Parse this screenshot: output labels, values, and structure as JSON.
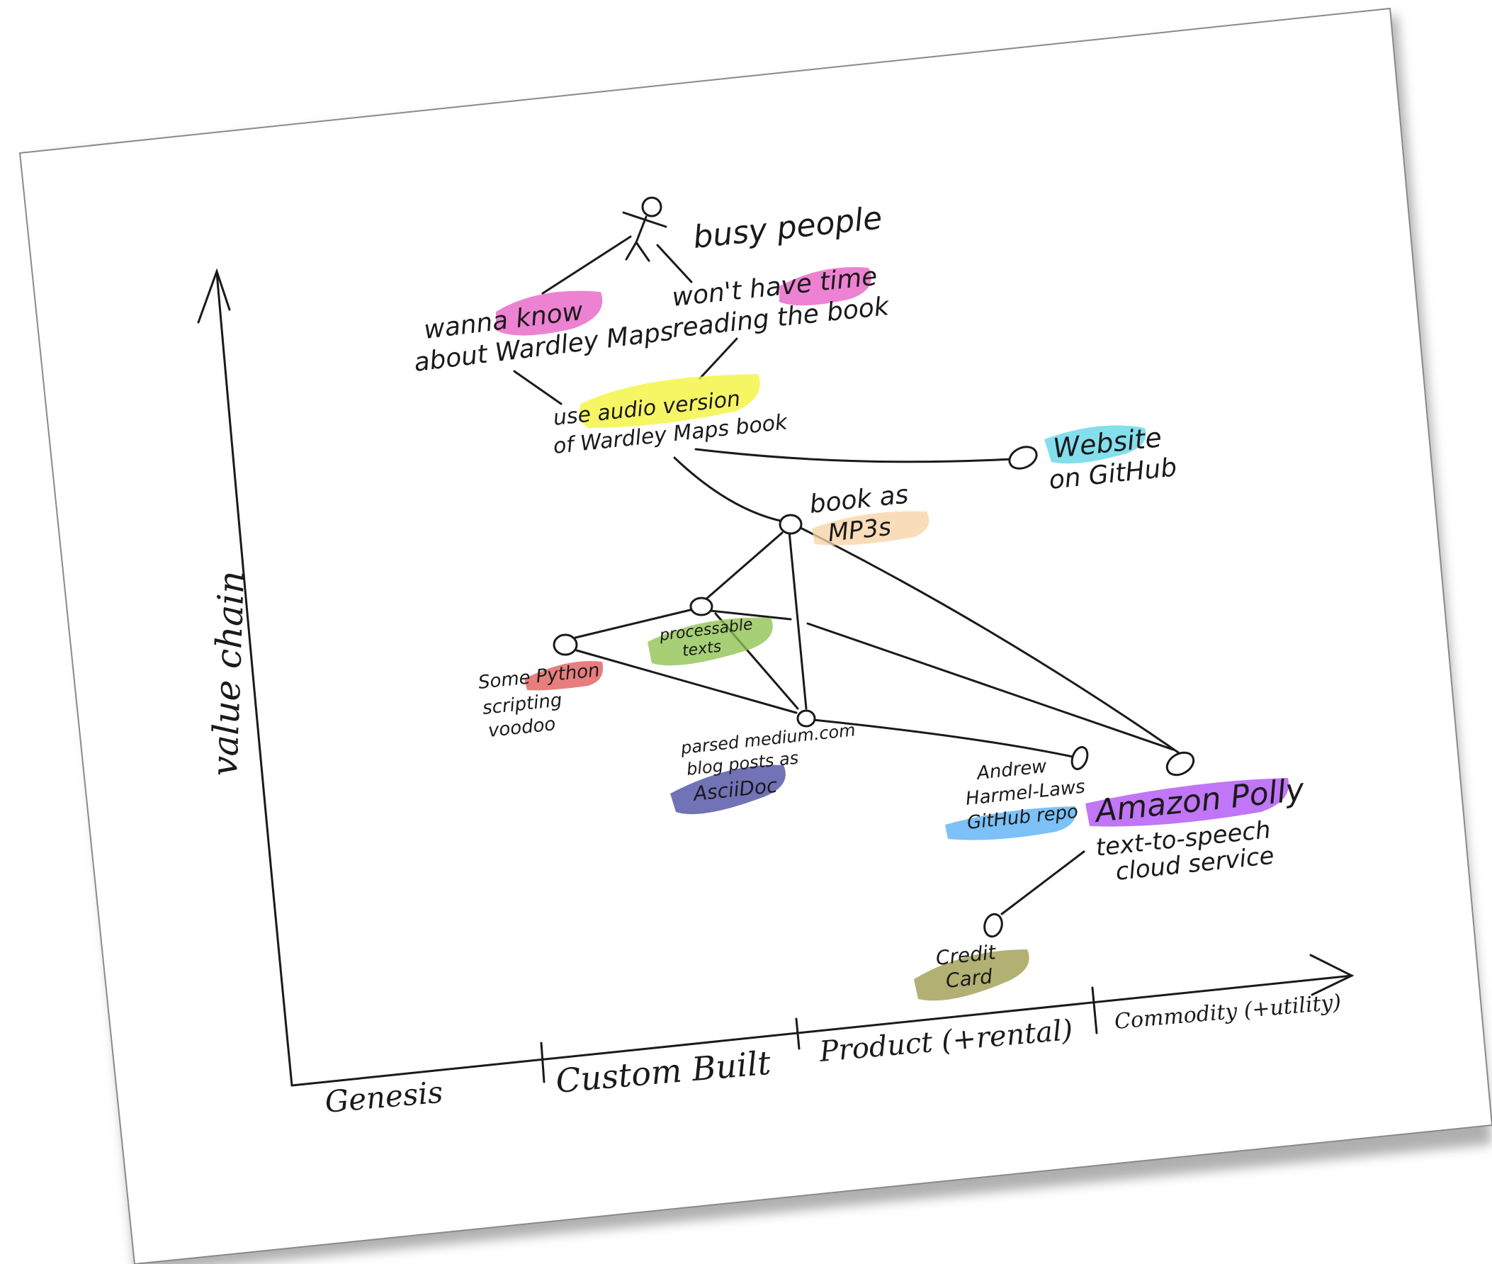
{
  "colors": {
    "pink": "#e85fc6",
    "yellow": "#f4f33a",
    "cyan": "#62d6e8",
    "peach": "#f7d3a6",
    "green": "#8ec24f",
    "red": "#e05a5a",
    "navy": "#4a4aa3",
    "blue": "#57b0f5",
    "purple": "#b04ff5",
    "olive": "#9c9a4c",
    "ink": "#1a1a1a"
  },
  "axes": {
    "y_label": "value chain",
    "x_stages": [
      "Genesis",
      "Custom Built",
      "Product (+rental)",
      "Commodity (+utility)"
    ]
  },
  "user": {
    "label": "busy people",
    "icon": "stick-figure-icon"
  },
  "needs": {
    "know": {
      "pre": "wanna ",
      "highlight": "know",
      "line2": "about Wardley Maps"
    },
    "time": {
      "pre": "won't have ",
      "highlight": "time",
      "line2": "reading the book"
    }
  },
  "components": {
    "audio": {
      "pre": "use ",
      "highlight": "audio version",
      "line2": "of Wardley Maps book"
    },
    "website": {
      "highlight": "Website",
      "line2": "on GitHub"
    },
    "mp3": {
      "line1": "book as",
      "highlight": "MP3s"
    },
    "texts": {
      "line1": "processable",
      "line2": "texts"
    },
    "python": {
      "pre": "Some ",
      "highlight": "Python",
      "line2": "scripting",
      "line3": "voodoo"
    },
    "asciidoc": {
      "line1": "parsed medium.com",
      "line2": "blog posts as",
      "highlight": "AsciiDoc"
    },
    "repo": {
      "line1": "Andrew",
      "line2": "Harmel-Laws",
      "highlight": "GitHub repo"
    },
    "polly": {
      "highlight": "Amazon Polly",
      "line2": "text-to-speech",
      "line3": "cloud service"
    },
    "card": {
      "line1": "Credit",
      "line2": "Card"
    }
  }
}
